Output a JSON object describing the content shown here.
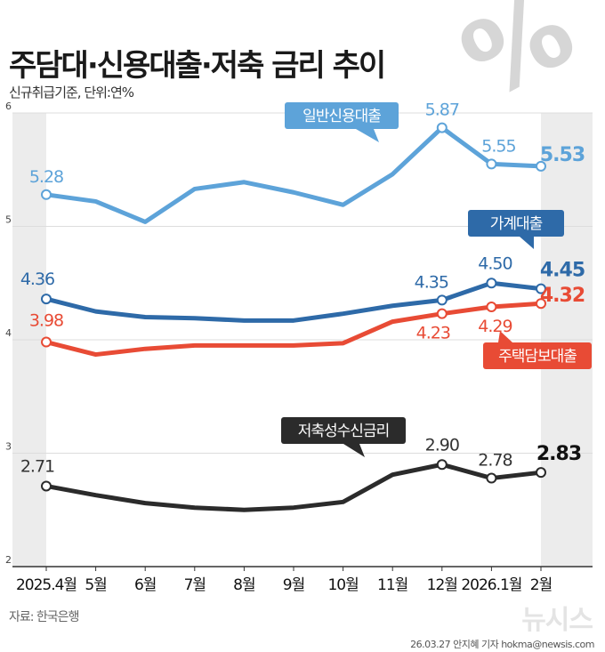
{
  "header": {
    "title": "주담대·신용대출·저축 금리 추이",
    "subtitle": "신규취급기준, 단위:연%",
    "percent_mark": "%"
  },
  "footer": {
    "source": "자료: 한국은행",
    "credit": "26.03.27 안지혜 기자 hokma@newsis.com",
    "logo": "뉴시스"
  },
  "colors": {
    "general_credit": "#5da3d9",
    "household": "#2e6aa8",
    "mortgage": "#e84b35",
    "savings": "#2b2b2b",
    "grid": "#dddddd",
    "band": "#ececec"
  },
  "chart_data": {
    "type": "line",
    "title": "주담대·신용대출·저축 금리 추이",
    "ylabel": "연%",
    "ylim": [
      2,
      6
    ],
    "yticks": [
      "2",
      "3",
      "4",
      "5",
      "6"
    ],
    "categories": [
      "2025.4월",
      "5월",
      "6월",
      "7월",
      "8월",
      "9월",
      "10월",
      "11월",
      "12월",
      "2026.1월",
      "2월"
    ],
    "series": [
      {
        "key": "general_credit",
        "name": "일반신용대출",
        "values": [
          5.28,
          5.22,
          5.04,
          5.33,
          5.39,
          5.3,
          5.19,
          5.46,
          5.87,
          5.55,
          5.53
        ],
        "labels": [
          "5.28",
          null,
          null,
          null,
          null,
          null,
          null,
          null,
          "5.87",
          "5.55",
          "5.53"
        ]
      },
      {
        "key": "household",
        "name": "가계대출",
        "values": [
          4.36,
          4.25,
          4.2,
          4.19,
          4.17,
          4.17,
          4.23,
          4.3,
          4.35,
          4.5,
          4.45
        ],
        "labels": [
          "4.36",
          null,
          null,
          null,
          null,
          null,
          null,
          null,
          "4.35",
          "4.50",
          "4.45"
        ]
      },
      {
        "key": "mortgage",
        "name": "주택담보대출",
        "values": [
          3.98,
          3.87,
          3.92,
          3.95,
          3.95,
          3.95,
          3.97,
          4.16,
          4.23,
          4.29,
          4.32
        ],
        "labels": [
          "3.98",
          null,
          null,
          null,
          null,
          null,
          null,
          null,
          "4.23",
          "4.29",
          "4.32"
        ]
      },
      {
        "key": "savings",
        "name": "저축성수신금리",
        "values": [
          2.71,
          2.63,
          2.56,
          2.52,
          2.5,
          2.52,
          2.57,
          2.81,
          2.9,
          2.78,
          2.83
        ],
        "labels": [
          "2.71",
          null,
          null,
          null,
          null,
          null,
          null,
          null,
          "2.90",
          "2.78",
          "2.83"
        ]
      }
    ]
  }
}
